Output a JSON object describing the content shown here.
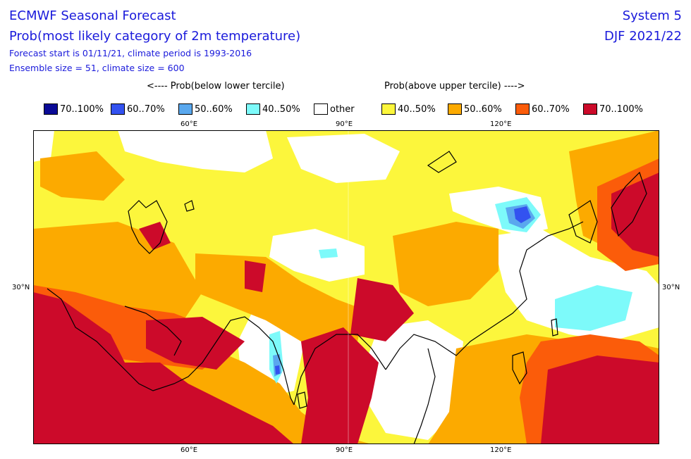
{
  "header": {
    "title": "ECMWF Seasonal Forecast",
    "subtitle": "Prob(most likely category of 2m temperature)",
    "forecast_start": "Forecast start is 01/11/21, climate period is 1993-2016",
    "ensemble": "Ensemble size = 51, climate size = 600",
    "system": "System 5",
    "season": "DJF 2021/22"
  },
  "legend": {
    "below_caption": "<---- Prob(below lower tercile)",
    "above_caption": "Prob(above upper tercile) ---->",
    "items": [
      {
        "label": "70..100%",
        "color": "#0a0a96"
      },
      {
        "label": "60..70%",
        "color": "#3352f0"
      },
      {
        "label": "50..60%",
        "color": "#5aa8ee"
      },
      {
        "label": "40..50%",
        "color": "#7dfafa"
      },
      {
        "label": "other",
        "color": "#ffffff"
      },
      {
        "label": "40..50%",
        "color": "#fcf63c"
      },
      {
        "label": "50..60%",
        "color": "#fcaa00"
      },
      {
        "label": "60..70%",
        "color": "#fb5c0a"
      },
      {
        "label": "70..100%",
        "color": "#cc0a2a"
      }
    ]
  },
  "map": {
    "lon_ticks": [
      "60°E",
      "90°E",
      "120°E"
    ],
    "lat_ticks": [
      "30°N"
    ]
  }
}
